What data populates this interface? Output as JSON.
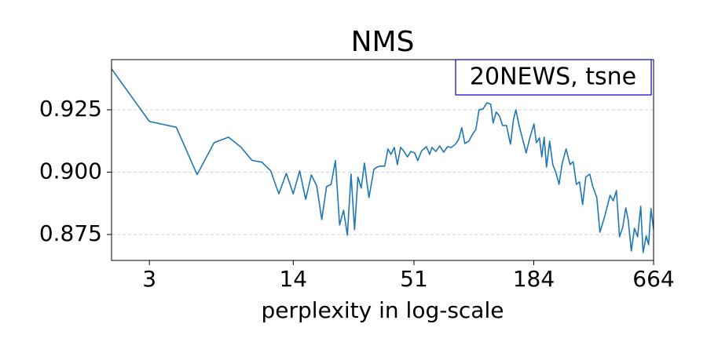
{
  "chart_data": {
    "type": "line",
    "title": "NMS",
    "annotation": "20NEWS, tsne",
    "xlabel": "perplexity in log-scale",
    "xscale": "log",
    "grid": true,
    "color": "#1f77b4",
    "annotation_color": "#0000cc",
    "xlim": [
      2,
      664
    ],
    "ylim": [
      0.8646,
      0.9451
    ],
    "xticks": [
      3,
      14,
      51,
      184,
      664
    ],
    "yticks": [
      0.875,
      {
        "value": 0.9,
        "label": "0.900"
      },
      0.925
    ],
    "x": [
      2,
      3,
      4,
      5,
      6,
      7,
      8,
      9,
      10,
      11,
      12,
      13,
      14,
      15,
      16,
      17,
      18,
      19,
      20,
      21,
      22,
      23,
      24,
      25,
      26,
      27,
      28,
      29,
      30,
      31.5,
      33.2,
      34.3,
      35.5,
      37.3,
      38.6,
      39.9,
      41.3,
      42.7,
      44.2,
      45.6,
      47.6,
      49.3,
      51.4,
      53.1,
      55.4,
      58.3,
      60.3,
      61.8,
      64.5,
      67.2,
      70.1,
      73.1,
      76.2,
      79.5,
      82.3,
      85.1,
      88,
      91.8,
      95.7,
      99,
      102.4,
      106.8,
      111.4,
      116.1,
      119.1,
      123.1,
      127.4,
      131.8,
      137.4,
      143.3,
      148.2,
      152,
      157.2,
      165.3,
      169.6,
      176.8,
      184.4,
      189.1,
      195.6,
      200.6,
      205.7,
      211,
      218.2,
      225.6,
      233.3,
      241.3,
      249.6,
      260.3,
      271.6,
      280.8,
      290.4,
      300.3,
      310.6,
      321.2,
      335,
      346.5,
      361.4,
      373.8,
      393.2,
      416.9,
      431.2,
      446,
      461.2,
      476.9,
      493.2,
      505.8,
      523.1,
      541,
      559.5,
      578.6,
      593.4,
      613.8,
      629.5,
      645.6,
      664
    ],
    "values": [
      0.9414,
      0.9203,
      0.918,
      0.899,
      0.9118,
      0.914,
      0.91,
      0.9047,
      0.904,
      0.9005,
      0.8913,
      0.8995,
      0.8913,
      0.9005,
      0.8891,
      0.8989,
      0.8945,
      0.881,
      0.8942,
      0.8951,
      0.9046,
      0.8788,
      0.8847,
      0.8747,
      0.8992,
      0.8769,
      0.898,
      0.8936,
      0.9036,
      0.8898,
      0.9011,
      0.902,
      0.9024,
      0.9024,
      0.9093,
      0.9071,
      0.9099,
      0.903,
      0.9099,
      0.9086,
      0.9061,
      0.9083,
      0.9077,
      0.9046,
      0.9086,
      0.9102,
      0.9071,
      0.9099,
      0.9083,
      0.9105,
      0.908,
      0.9102,
      0.9099,
      0.9112,
      0.9131,
      0.9178,
      0.9115,
      0.9124,
      0.9153,
      0.9171,
      0.925,
      0.9253,
      0.9278,
      0.9272,
      0.9197,
      0.9241,
      0.9225,
      0.9187,
      0.9187,
      0.9112,
      0.9212,
      0.925,
      0.9187,
      0.9115,
      0.9077,
      0.914,
      0.9193,
      0.9118,
      0.9137,
      0.9061,
      0.914,
      0.902,
      0.9124,
      0.903,
      0.8998,
      0.8951,
      0.9036,
      0.9093,
      0.903,
      0.9042,
      0.8951,
      0.8961,
      0.887,
      0.898,
      0.8992,
      0.8942,
      0.8898,
      0.8759,
      0.8822,
      0.8907,
      0.8885,
      0.8926,
      0.8741,
      0.8778,
      0.8857,
      0.881,
      0.8684,
      0.8775,
      0.8741,
      0.8863,
      0.8678,
      0.8744,
      0.8709,
      0.8854,
      0.8769
    ]
  }
}
